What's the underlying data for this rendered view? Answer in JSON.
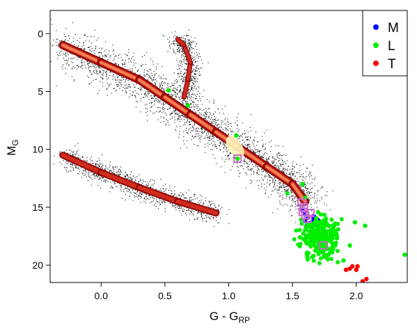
{
  "chart_data": {
    "type": "scatter",
    "title": "",
    "xlabel": {
      "main": "G - G",
      "sub": "RP"
    },
    "ylabel": {
      "main": "M",
      "sub": "G"
    },
    "xlim": [
      -0.4,
      2.4
    ],
    "ylim": [
      21.5,
      -2.0
    ],
    "y_inverted": true,
    "x_ticks": [
      {
        "value": 0.0,
        "label": "0.0"
      },
      {
        "value": 0.5,
        "label": "0.5"
      },
      {
        "value": 1.0,
        "label": "1.0"
      },
      {
        "value": 1.5,
        "label": "1.5"
      },
      {
        "value": 2.0,
        "label": "2.0"
      }
    ],
    "y_ticks": [
      {
        "value": 0,
        "label": "0"
      },
      {
        "value": 5,
        "label": "5"
      },
      {
        "value": 10,
        "label": "10"
      },
      {
        "value": 15,
        "label": "15"
      },
      {
        "value": 20,
        "label": "20"
      }
    ],
    "grid": false,
    "legend": {
      "placement": "top-right",
      "entries": [
        {
          "label": "M",
          "color": "#0000ff"
        },
        {
          "label": "L",
          "color": "#00ee00"
        },
        {
          "label": "T",
          "color": "#ff0000"
        }
      ]
    },
    "background_density": {
      "description_colors": [
        "#000000",
        "#8b0000",
        "#d7301f",
        "#fc8d59",
        "#fff7bc"
      ],
      "main_sequence": [
        [
          -0.3,
          1.0
        ],
        [
          0.0,
          2.5
        ],
        [
          0.3,
          4.0
        ],
        [
          0.5,
          5.5
        ],
        [
          0.7,
          7.0
        ],
        [
          0.9,
          8.5
        ],
        [
          1.1,
          10.0
        ],
        [
          1.3,
          11.5
        ],
        [
          1.5,
          13.0
        ],
        [
          1.6,
          14.5
        ]
      ],
      "giant_branch": [
        [
          0.65,
          5.5
        ],
        [
          0.68,
          4.0
        ],
        [
          0.7,
          2.5
        ],
        [
          0.65,
          1.0
        ],
        [
          0.6,
          0.5
        ]
      ],
      "white_dwarf_sequence": [
        [
          -0.3,
          10.5
        ],
        [
          0.0,
          12.0
        ],
        [
          0.3,
          13.3
        ],
        [
          0.6,
          14.5
        ],
        [
          0.9,
          15.5
        ]
      ]
    },
    "series": [
      {
        "name": "M",
        "color": "#0000ff",
        "points": [
          {
            "x": 1.58,
            "y": 15.3
          },
          {
            "x": 1.6,
            "y": 15.6
          },
          {
            "x": 1.62,
            "y": 15.9
          },
          {
            "x": 1.6,
            "y": 16.2
          },
          {
            "x": 1.63,
            "y": 16.4
          },
          {
            "x": 1.66,
            "y": 16.0
          },
          {
            "x": 1.68,
            "y": 16.5
          },
          {
            "x": 1.61,
            "y": 16.6
          },
          {
            "x": 1.65,
            "y": 16.3
          },
          {
            "x": 1.7,
            "y": 16.1
          },
          {
            "x": 1.64,
            "y": 16.7
          },
          {
            "x": 1.67,
            "y": 15.8
          }
        ]
      },
      {
        "name": "L",
        "color": "#00ee00",
        "points": [
          {
            "x": 0.53,
            "y": 4.9
          },
          {
            "x": 0.68,
            "y": 6.2
          },
          {
            "x": 1.06,
            "y": 8.8
          },
          {
            "x": 1.07,
            "y": 10.8
          },
          {
            "x": 1.46,
            "y": 13.8
          },
          {
            "x": 1.58,
            "y": 13.0
          },
          {
            "x": 1.6,
            "y": 14.2
          },
          {
            "x": 2.38,
            "y": 19.1
          },
          {
            "x": 2.07,
            "y": 16.6
          },
          {
            "x": 1.99,
            "y": 16.3
          },
          {
            "x": 1.95,
            "y": 18.3
          },
          {
            "x": 1.62,
            "y": 19.5
          },
          {
            "x": 1.9,
            "y": 19.6
          },
          {
            "x": 1.56,
            "y": 17.6
          },
          {
            "x": 1.8,
            "y": 17.0
          },
          {
            "x": 1.7,
            "y": 18.8
          }
        ]
      },
      {
        "name": "T",
        "color": "#ff0000",
        "points": [
          {
            "x": 1.92,
            "y": 20.4
          },
          {
            "x": 1.95,
            "y": 20.3
          },
          {
            "x": 1.97,
            "y": 20.1
          },
          {
            "x": 2.0,
            "y": 20.4
          },
          {
            "x": 2.01,
            "y": 20.1
          },
          {
            "x": 2.05,
            "y": 21.4
          },
          {
            "x": 2.08,
            "y": 21.2
          }
        ]
      }
    ],
    "highlighted_squares": {
      "color": "#cc66cc",
      "points": [
        {
          "x": 1.07,
          "y": 10.8
        },
        {
          "x": 1.57,
          "y": 14.6
        },
        {
          "x": 1.59,
          "y": 15.0
        },
        {
          "x": 1.58,
          "y": 15.4
        },
        {
          "x": 1.6,
          "y": 15.7
        },
        {
          "x": 1.64,
          "y": 15.5
        },
        {
          "x": 1.62,
          "y": 16.0
        },
        {
          "x": 1.74,
          "y": 18.3
        }
      ]
    }
  }
}
